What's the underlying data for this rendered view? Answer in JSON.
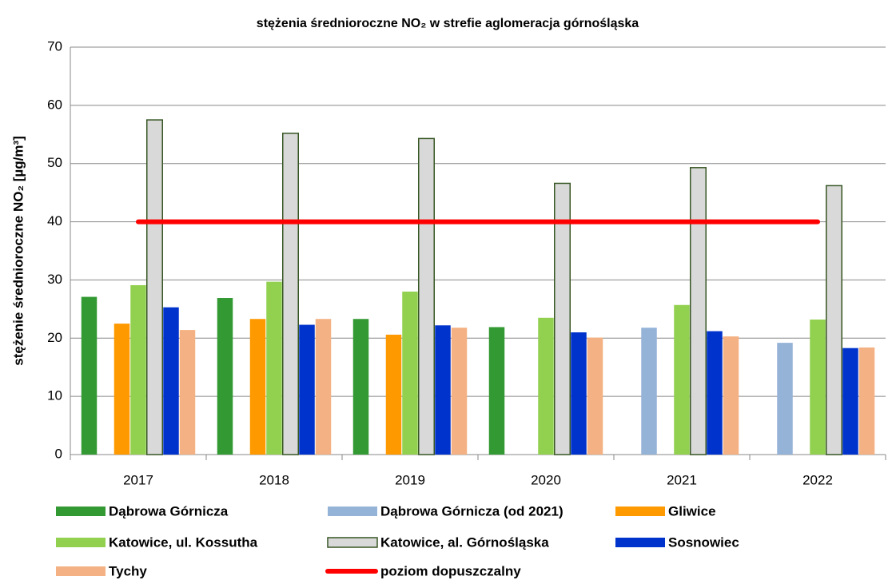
{
  "chart_data": {
    "type": "bar",
    "title": "stężenia średnioroczne NO₂ w strefie aglomeracja górnośląska",
    "y_label": "stężenie średnioroczne NO₂ [µg/m³]",
    "categories": [
      "2017",
      "2018",
      "2019",
      "2020",
      "2021",
      "2022"
    ],
    "series": [
      {
        "name": "Dąbrowa Górnicza",
        "color": "#339933",
        "values": [
          27.1,
          26.9,
          23.3,
          21.9,
          null,
          null
        ]
      },
      {
        "name": "Dąbrowa Górnicza (od 2021)",
        "color": "#95b3d7",
        "values": [
          null,
          null,
          null,
          null,
          21.8,
          19.2
        ]
      },
      {
        "name": "Gliwice",
        "color": "#ff9900",
        "values": [
          22.5,
          23.3,
          20.6,
          null,
          null,
          null
        ]
      },
      {
        "name": "Katowice, ul. Kossutha",
        "color": "#92d050",
        "values": [
          29.1,
          29.7,
          28.0,
          23.5,
          25.7,
          23.2
        ]
      },
      {
        "name": "Katowice, al. Górnośląska",
        "color": "#d9d9d9",
        "edgecolor": "#375623",
        "values": [
          57.5,
          55.2,
          54.3,
          46.6,
          49.3,
          46.2
        ]
      },
      {
        "name": "Sosnowiec",
        "color": "#0033cc",
        "values": [
          25.3,
          22.3,
          22.2,
          21.0,
          21.2,
          18.3
        ]
      },
      {
        "name": "Tychy",
        "color": "#f4b183",
        "values": [
          21.4,
          23.3,
          21.8,
          20.1,
          20.3,
          18.4
        ]
      },
      {
        "name": "poziom dopuszczalny",
        "type": "line",
        "color": "#ff0000",
        "values": [
          40,
          40,
          40,
          40,
          40,
          40
        ]
      }
    ],
    "ylim": [
      0,
      70
    ],
    "yticks": [
      0,
      10,
      20,
      30,
      40,
      50,
      60,
      70
    ],
    "grid": true
  }
}
